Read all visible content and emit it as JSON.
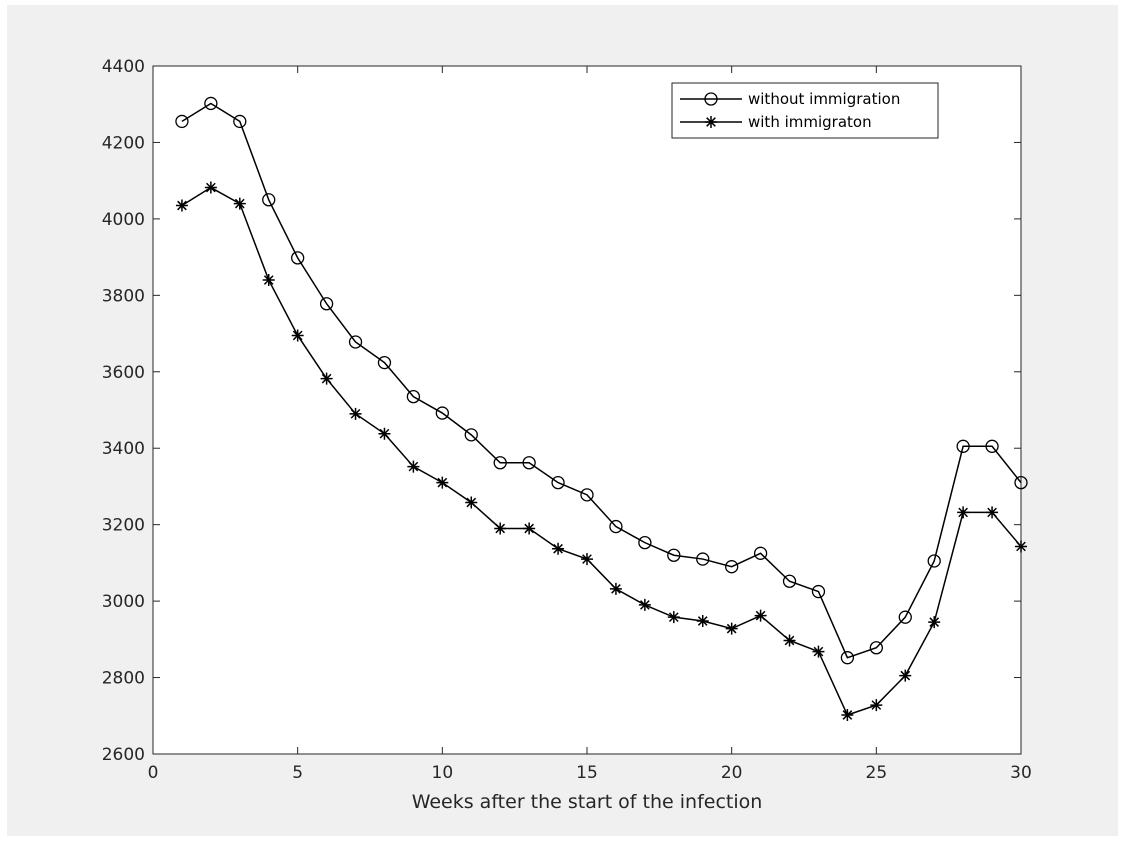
{
  "chart_data": {
    "type": "line",
    "xlabel": "Weeks after the start of the infection",
    "ylabel": "",
    "xlim": [
      0,
      30
    ],
    "ylim": [
      2600,
      4400
    ],
    "xticks": [
      0,
      5,
      10,
      15,
      20,
      25,
      30
    ],
    "yticks": [
      2600,
      2800,
      3000,
      3200,
      3400,
      3600,
      3800,
      4000,
      4200,
      4400
    ],
    "grid": false,
    "legend_position": "top-right",
    "x": [
      1,
      2,
      3,
      4,
      5,
      6,
      7,
      8,
      9,
      10,
      11,
      12,
      13,
      14,
      15,
      16,
      17,
      18,
      19,
      20,
      21,
      22,
      23,
      24,
      25,
      26,
      27,
      28,
      29,
      30
    ],
    "series": [
      {
        "name": "without immigration",
        "marker": "circle",
        "color": "#000000",
        "values": [
          4255,
          4302,
          4255,
          4050,
          3898,
          3778,
          3678,
          3624,
          3535,
          3492,
          3435,
          3362,
          3362,
          3310,
          3278,
          3195,
          3153,
          3120,
          3110,
          3090,
          3125,
          3052,
          3025,
          2852,
          2878,
          2958,
          3105,
          3405,
          3405,
          3310
        ]
      },
      {
        "name": "with immigraton",
        "marker": "asterisk",
        "color": "#000000",
        "values": [
          4035,
          4082,
          4040,
          3840,
          3695,
          3582,
          3490,
          3438,
          3352,
          3310,
          3258,
          3190,
          3190,
          3137,
          3110,
          3032,
          2990,
          2958,
          2948,
          2928,
          2962,
          2897,
          2868,
          2702,
          2728,
          2805,
          2945,
          3232,
          3232,
          3143
        ]
      }
    ]
  }
}
